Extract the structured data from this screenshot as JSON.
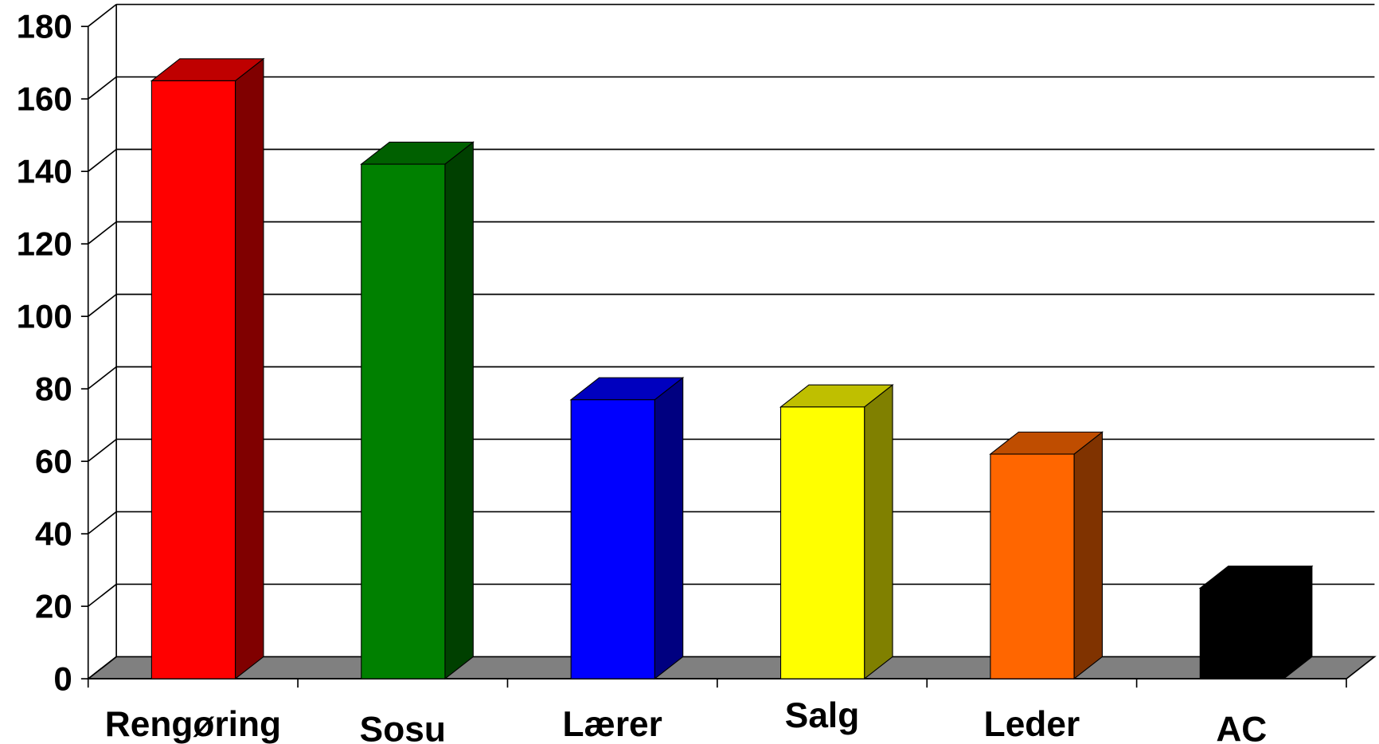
{
  "chart_data": {
    "type": "bar3d",
    "categories": [
      "Rengøring",
      "Sosu",
      "Lærer",
      "Salg",
      "Leder",
      "AC"
    ],
    "values": [
      165,
      142,
      77,
      75,
      62,
      25
    ],
    "colors": [
      "#ff0000",
      "#008000",
      "#0000ff",
      "#ffff00",
      "#ff6600",
      "#000000"
    ],
    "ylim": [
      0,
      180
    ],
    "yticks": [
      0,
      20,
      40,
      60,
      80,
      100,
      120,
      140,
      160,
      180
    ],
    "grid": true
  }
}
